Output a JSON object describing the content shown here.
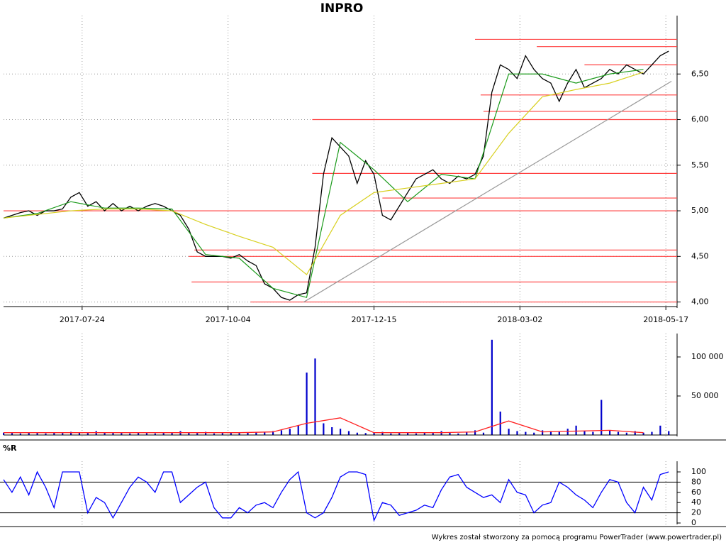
{
  "chart_data": [
    {
      "type": "line",
      "title": "INPRO",
      "xlim": [
        0,
        240
      ],
      "xticks": [
        {
          "value": 28,
          "label": "2017-07-24"
        },
        {
          "value": 80,
          "label": "2017-10-04"
        },
        {
          "value": 132,
          "label": "2017-12-15"
        },
        {
          "value": 184,
          "label": "2018-03-02"
        },
        {
          "value": 236,
          "label": "2018-05-17"
        }
      ],
      "ylim": [
        3.95,
        7.0
      ],
      "yticks": [
        {
          "value": 4.0,
          "label": "4,00"
        },
        {
          "value": 4.5,
          "label": "4,50"
        },
        {
          "value": 5.0,
          "label": "5,00"
        },
        {
          "value": 5.5,
          "label": "5,50"
        },
        {
          "value": 6.0,
          "label": "6,00"
        },
        {
          "value": 6.5,
          "label": "6,50"
        }
      ],
      "grid": true,
      "series": [
        {
          "color": "#000000",
          "x": [
            0,
            3,
            6,
            9,
            12,
            15,
            18,
            21,
            24,
            27,
            30,
            33,
            36,
            39,
            42,
            45,
            48,
            51,
            54,
            57,
            60,
            63,
            66,
            69,
            72,
            75,
            78,
            81,
            84,
            87,
            90,
            93,
            96,
            99,
            102,
            105,
            108,
            111,
            114,
            117,
            120,
            123,
            126,
            129,
            132,
            135,
            138,
            141,
            144,
            147,
            150,
            153,
            156,
            159,
            162,
            165,
            168,
            171,
            174,
            177,
            180,
            183,
            186,
            189,
            192,
            195,
            198,
            201,
            204,
            207,
            210,
            213,
            216,
            219,
            222,
            225,
            228,
            231,
            234,
            237
          ],
          "values": [
            4.92,
            4.95,
            4.98,
            5.0,
            4.95,
            5.0,
            5.0,
            5.02,
            5.15,
            5.2,
            5.05,
            5.1,
            5.0,
            5.08,
            5.0,
            5.05,
            5.0,
            5.05,
            5.08,
            5.05,
            5.0,
            4.95,
            4.8,
            4.55,
            4.5,
            4.5,
            4.5,
            4.48,
            4.52,
            4.45,
            4.4,
            4.2,
            4.15,
            4.05,
            4.02,
            4.08,
            4.1,
            4.6,
            5.4,
            5.8,
            5.7,
            5.6,
            5.3,
            5.55,
            5.4,
            4.95,
            4.9,
            5.05,
            5.2,
            5.35,
            5.4,
            5.45,
            5.35,
            5.3,
            5.38,
            5.35,
            5.4,
            5.6,
            6.3,
            6.6,
            6.55,
            6.45,
            6.7,
            6.55,
            6.45,
            6.4,
            6.2,
            6.4,
            6.55,
            6.35,
            6.4,
            6.45,
            6.55,
            6.5,
            6.6,
            6.55,
            6.5,
            6.6,
            6.7,
            6.75
          ]
        },
        {
          "color": "#1a9a1a",
          "x": [
            0,
            12,
            24,
            36,
            48,
            60,
            72,
            84,
            96,
            108,
            120,
            132,
            144,
            156,
            168,
            180,
            192,
            204,
            216,
            228
          ],
          "values": [
            4.92,
            4.97,
            5.1,
            5.03,
            5.03,
            5.02,
            4.52,
            4.48,
            4.15,
            4.05,
            5.75,
            5.45,
            5.1,
            5.4,
            5.35,
            6.5,
            6.5,
            6.4,
            6.5,
            6.55
          ]
        },
        {
          "color": "#d8d020",
          "x": [
            0,
            12,
            24,
            36,
            48,
            60,
            72,
            84,
            96,
            108,
            120,
            132,
            144,
            156,
            168,
            180,
            192,
            204,
            216,
            228
          ],
          "values": [
            4.92,
            4.96,
            5.0,
            5.02,
            5.02,
            5.0,
            4.85,
            4.72,
            4.6,
            4.3,
            4.95,
            5.2,
            5.25,
            5.3,
            5.35,
            5.85,
            6.25,
            6.33,
            6.4,
            6.52
          ]
        }
      ],
      "levels": [
        {
          "value": 6.88,
          "from": 168
        },
        {
          "value": 6.8,
          "from": 190
        },
        {
          "value": 6.6,
          "from": 207
        },
        {
          "value": 6.27,
          "from": 170
        },
        {
          "value": 6.09,
          "from": 171
        },
        {
          "value": 6.0,
          "from": 110
        },
        {
          "value": 5.41,
          "from": 110
        },
        {
          "value": 5.14,
          "from": 135
        },
        {
          "value": 5.0,
          "from": 0
        },
        {
          "value": 4.57,
          "from": 68
        },
        {
          "value": 4.5,
          "from": 66
        },
        {
          "value": 4.22,
          "from": 67
        },
        {
          "value": 4.0,
          "from": 88
        }
      ],
      "level_color": "#ff4040",
      "trendline": {
        "x": [
          107,
          238
        ],
        "values": [
          4.0,
          6.42
        ],
        "color": "#999999"
      }
    },
    {
      "type": "bar",
      "ylim": [
        0,
        125000
      ],
      "yticks": [
        {
          "value": 50000,
          "label": "50 000"
        },
        {
          "value": 100000,
          "label": "100 000"
        }
      ],
      "color": "#0000cc",
      "x": [
        0,
        3,
        6,
        9,
        12,
        15,
        18,
        21,
        24,
        27,
        30,
        33,
        36,
        39,
        42,
        45,
        48,
        51,
        54,
        57,
        60,
        63,
        66,
        69,
        72,
        75,
        78,
        81,
        84,
        87,
        90,
        93,
        96,
        99,
        102,
        105,
        108,
        111,
        114,
        117,
        120,
        123,
        126,
        129,
        132,
        135,
        138,
        141,
        144,
        147,
        150,
        153,
        156,
        159,
        162,
        165,
        168,
        171,
        174,
        177,
        180,
        183,
        186,
        189,
        192,
        195,
        198,
        201,
        204,
        207,
        210,
        213,
        216,
        219,
        222,
        225,
        228,
        231,
        234,
        237
      ],
      "values": [
        3000,
        2500,
        2000,
        2800,
        3500,
        2000,
        3000,
        2500,
        4000,
        3000,
        2500,
        5000,
        3500,
        3000,
        2500,
        2000,
        3000,
        2500,
        2000,
        2500,
        3000,
        5000,
        3000,
        2500,
        4000,
        2000,
        2500,
        3000,
        2500,
        3000,
        3500,
        4000,
        5000,
        6000,
        8000,
        12000,
        80000,
        98000,
        15000,
        10000,
        8000,
        5000,
        3000,
        2500,
        3000,
        4000,
        2000,
        2500,
        3000,
        2000,
        3000,
        2500,
        5000,
        3000,
        2000,
        4000,
        6000,
        3000,
        122000,
        30000,
        8000,
        5000,
        4000,
        3000,
        6000,
        5000,
        4000,
        8000,
        12000,
        5000,
        4000,
        45000,
        6000,
        4000,
        3000,
        5000,
        3000,
        4000,
        12000,
        5000
      ],
      "overlay": {
        "color": "#ff2020",
        "x": [
          0,
          12,
          24,
          36,
          48,
          60,
          72,
          84,
          96,
          108,
          120,
          132,
          144,
          156,
          168,
          180,
          192,
          204,
          216,
          228
        ],
        "values": [
          3000,
          3000,
          3000,
          3000,
          3000,
          3000,
          3000,
          3000,
          4000,
          15000,
          22000,
          3000,
          3000,
          3000,
          4000,
          18000,
          4000,
          5000,
          6000,
          3000
        ]
      }
    },
    {
      "type": "line",
      "title": "%R",
      "ylim": [
        0,
        100
      ],
      "yticks": [
        0,
        20,
        40,
        60,
        80,
        100
      ],
      "hlines": [
        20,
        80
      ],
      "series": [
        {
          "color": "#0000ff",
          "x": [
            0,
            3,
            6,
            9,
            12,
            15,
            18,
            21,
            24,
            27,
            30,
            33,
            36,
            39,
            42,
            45,
            48,
            51,
            54,
            57,
            60,
            63,
            66,
            69,
            72,
            75,
            78,
            81,
            84,
            87,
            90,
            93,
            96,
            99,
            102,
            105,
            108,
            111,
            114,
            117,
            120,
            123,
            126,
            129,
            132,
            135,
            138,
            141,
            144,
            147,
            150,
            153,
            156,
            159,
            162,
            165,
            168,
            171,
            174,
            177,
            180,
            183,
            186,
            189,
            192,
            195,
            198,
            201,
            204,
            207,
            210,
            213,
            216,
            219,
            222,
            225,
            228,
            231,
            234,
            237
          ],
          "values": [
            85,
            60,
            90,
            55,
            100,
            70,
            30,
            100,
            100,
            100,
            20,
            50,
            40,
            10,
            40,
            70,
            90,
            80,
            60,
            100,
            100,
            40,
            55,
            70,
            80,
            30,
            10,
            10,
            30,
            20,
            35,
            40,
            30,
            60,
            85,
            100,
            20,
            10,
            20,
            50,
            90,
            100,
            100,
            95,
            5,
            40,
            35,
            15,
            20,
            25,
            35,
            30,
            65,
            90,
            95,
            70,
            60,
            50,
            55,
            40,
            85,
            60,
            55,
            20,
            35,
            40,
            80,
            70,
            55,
            45,
            30,
            60,
            85,
            80,
            40,
            20,
            70,
            45,
            95,
            100
          ]
        }
      ]
    }
  ],
  "footer": "Wykres został stworzony za pomocą programu PowerTrader (www.powertrader.pl)"
}
